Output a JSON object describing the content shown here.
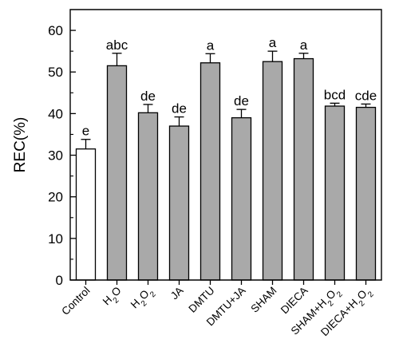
{
  "chart_data": {
    "type": "bar",
    "ylabel": "REC(%)",
    "ylim": [
      0,
      65
    ],
    "yticks": [
      0,
      10,
      20,
      30,
      40,
      50,
      60
    ],
    "categories": [
      {
        "parts": [
          {
            "t": "Control"
          }
        ]
      },
      {
        "parts": [
          {
            "t": "H"
          },
          {
            "t": "2",
            "sub": true
          },
          {
            "t": "O"
          }
        ]
      },
      {
        "parts": [
          {
            "t": "H"
          },
          {
            "t": "2",
            "sub": true
          },
          {
            "t": "O"
          },
          {
            "t": "2",
            "sub": true
          }
        ]
      },
      {
        "parts": [
          {
            "t": "JA"
          }
        ]
      },
      {
        "parts": [
          {
            "t": "DMTU"
          }
        ]
      },
      {
        "parts": [
          {
            "t": "DMTU+JA"
          }
        ]
      },
      {
        "parts": [
          {
            "t": "SHAM"
          }
        ]
      },
      {
        "parts": [
          {
            "t": "DIECA"
          }
        ]
      },
      {
        "parts": [
          {
            "t": "SHAM+H"
          },
          {
            "t": "2",
            "sub": true
          },
          {
            "t": "O"
          },
          {
            "t": "2",
            "sub": true
          }
        ]
      },
      {
        "parts": [
          {
            "t": "DIECA+H"
          },
          {
            "t": "2",
            "sub": true
          },
          {
            "t": "O"
          },
          {
            "t": "2",
            "sub": true
          }
        ]
      }
    ],
    "values": [
      31.5,
      51.5,
      40.2,
      37.0,
      52.2,
      39.0,
      52.5,
      53.2,
      41.8,
      41.5
    ],
    "errors": [
      2.3,
      3.0,
      2.0,
      2.2,
      2.2,
      2.0,
      2.5,
      1.3,
      0.7,
      0.8
    ],
    "significance": [
      "e",
      "abc",
      "de",
      "de",
      "a",
      "de",
      "a",
      "a",
      "bcd",
      "cde"
    ],
    "colors": [
      "#ffffff",
      "#a9a9a9",
      "#a9a9a9",
      "#a9a9a9",
      "#a9a9a9",
      "#a9a9a9",
      "#a9a9a9",
      "#a9a9a9",
      "#a9a9a9",
      "#a9a9a9"
    ],
    "legend": null,
    "grid": false
  }
}
